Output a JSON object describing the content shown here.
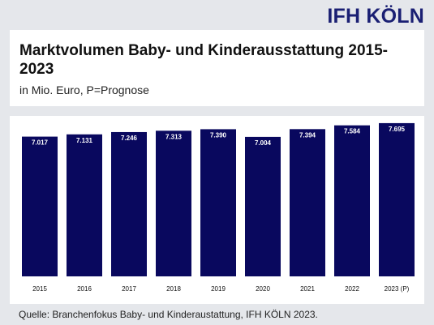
{
  "brand": "IFH KÖLN",
  "source": "Quelle: Branchenfokus Baby- und Kinderaustattung, IFH KÖLN 2023.",
  "chart_data": {
    "type": "bar",
    "title": "Marktvolumen Baby- und Kinderausstattung 2015-2023",
    "subtitle": "in Mio. Euro, P=Prognose",
    "categories": [
      "2015",
      "2016",
      "2017",
      "2018",
      "2019",
      "2020",
      "2021",
      "2022",
      "2023 (P)"
    ],
    "values": [
      7017,
      7131,
      7246,
      7313,
      7390,
      7004,
      7394,
      7584,
      7695
    ],
    "value_labels": [
      "7.017",
      "7.131",
      "7.246",
      "7.313",
      "7.390",
      "7.004",
      "7.394",
      "7.584",
      "7.695"
    ],
    "bar_color": "#09085e",
    "xlabel": "",
    "ylabel": "",
    "grid": false,
    "legend": "none"
  }
}
